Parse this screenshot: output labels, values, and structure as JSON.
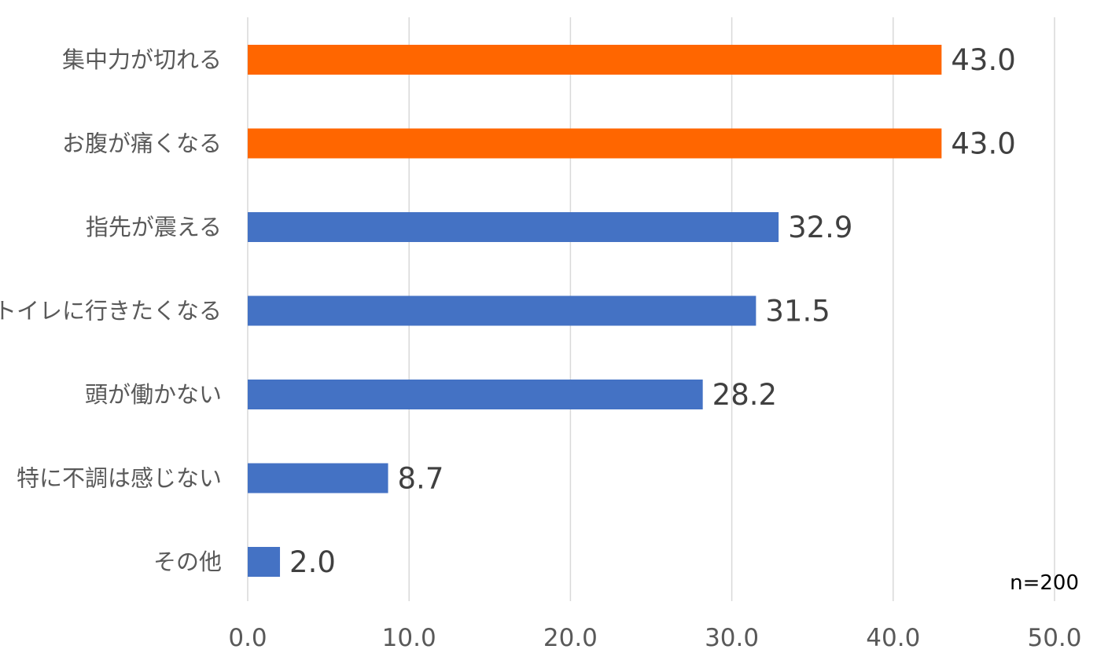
{
  "chart_data": {
    "type": "bar",
    "orientation": "horizontal",
    "categories": [
      "集中力が切れる",
      "お腹が痛くなる",
      "指先が震える",
      "トイレに行きたくなる",
      "頭が働かない",
      "特に不調は感じない",
      "その他"
    ],
    "values": [
      43.0,
      43.0,
      32.9,
      31.5,
      28.2,
      8.7,
      2.0
    ],
    "value_labels": [
      "43.0",
      "43.0",
      "32.9",
      "31.5",
      "28.2",
      "8.7",
      "2.0"
    ],
    "highlight": [
      true,
      true,
      false,
      false,
      false,
      false,
      false
    ],
    "xlim": [
      0,
      50
    ],
    "x_ticks": [
      0,
      10,
      20,
      30,
      40,
      50
    ],
    "x_tick_labels": [
      "0.0",
      "10.0",
      "20.0",
      "30.0",
      "40.0",
      "50.0"
    ],
    "grid": "vertical",
    "legend": "none",
    "title": "",
    "xlabel": "",
    "ylabel": "",
    "annotation": "n=200",
    "colors": {
      "highlight": "#FF6600",
      "default": "#4472C4",
      "grid": "#D9D9D9",
      "axis": "#BFBFBF"
    }
  }
}
